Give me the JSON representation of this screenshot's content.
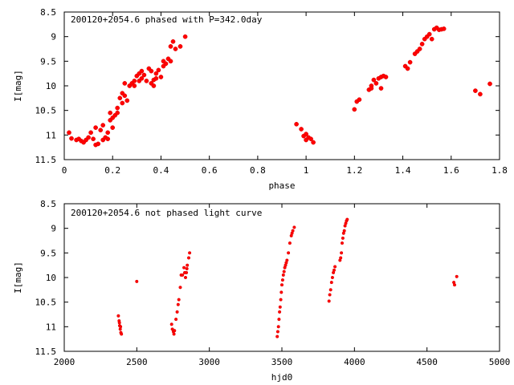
{
  "chart_data": [
    {
      "type": "scatter",
      "title": "200120+2054.6 phased with P=342.0day",
      "xlabel": "phase",
      "ylabel": "I[mag]",
      "xlim": [
        0,
        1.8
      ],
      "ylim": [
        11.5,
        8.5
      ],
      "y_inverted": true,
      "xticks": [
        "0",
        "0.2",
        "0.4",
        "0.6",
        "0.8",
        "1",
        "1.2",
        "1.4",
        "1.6",
        "1.8"
      ],
      "yticks": [
        "8.5",
        "9",
        "9.5",
        "10",
        "10.5",
        "11",
        "11.5"
      ],
      "marker_color": "#ff0000",
      "points": [
        [
          0.02,
          10.95
        ],
        [
          0.03,
          11.07
        ],
        [
          0.05,
          11.1
        ],
        [
          0.06,
          11.08
        ],
        [
          0.07,
          11.12
        ],
        [
          0.08,
          11.15
        ],
        [
          0.09,
          11.1
        ],
        [
          0.1,
          11.05
        ],
        [
          0.11,
          10.95
        ],
        [
          0.12,
          11.08
        ],
        [
          0.13,
          10.85
        ],
        [
          0.13,
          11.2
        ],
        [
          0.14,
          11.18
        ],
        [
          0.15,
          10.9
        ],
        [
          0.16,
          11.1
        ],
        [
          0.16,
          10.8
        ],
        [
          0.17,
          11.05
        ],
        [
          0.18,
          10.95
        ],
        [
          0.18,
          11.08
        ],
        [
          0.19,
          10.7
        ],
        [
          0.19,
          10.55
        ],
        [
          0.2,
          10.65
        ],
        [
          0.2,
          10.85
        ],
        [
          0.21,
          10.6
        ],
        [
          0.22,
          10.55
        ],
        [
          0.22,
          10.45
        ],
        [
          0.23,
          10.25
        ],
        [
          0.24,
          10.15
        ],
        [
          0.24,
          10.35
        ],
        [
          0.25,
          10.2
        ],
        [
          0.26,
          10.3
        ],
        [
          0.25,
          9.95
        ],
        [
          0.27,
          10.0
        ],
        [
          0.28,
          9.95
        ],
        [
          0.29,
          9.9
        ],
        [
          0.29,
          10.0
        ],
        [
          0.3,
          9.8
        ],
        [
          0.31,
          9.9
        ],
        [
          0.31,
          9.75
        ],
        [
          0.32,
          9.85
        ],
        [
          0.32,
          9.7
        ],
        [
          0.33,
          9.78
        ],
        [
          0.34,
          9.9
        ],
        [
          0.35,
          9.65
        ],
        [
          0.36,
          9.7
        ],
        [
          0.36,
          9.95
        ],
        [
          0.37,
          9.88
        ],
        [
          0.37,
          10.0
        ],
        [
          0.38,
          9.85
        ],
        [
          0.38,
          9.75
        ],
        [
          0.39,
          9.68
        ],
        [
          0.4,
          9.82
        ],
        [
          0.41,
          9.6
        ],
        [
          0.41,
          9.5
        ],
        [
          0.42,
          9.55
        ],
        [
          0.43,
          9.45
        ],
        [
          0.44,
          9.5
        ],
        [
          0.44,
          9.2
        ],
        [
          0.45,
          9.1
        ],
        [
          0.46,
          9.25
        ],
        [
          0.48,
          9.2
        ],
        [
          0.5,
          9.0
        ],
        [
          0.96,
          10.78
        ],
        [
          0.98,
          10.88
        ],
        [
          0.99,
          11.02
        ],
        [
          1.0,
          10.98
        ],
        [
          1.01,
          11.05
        ],
        [
          1.02,
          11.08
        ],
        [
          1.03,
          11.15
        ],
        [
          1.0,
          11.1
        ],
        [
          1.2,
          10.48
        ],
        [
          1.21,
          10.32
        ],
        [
          1.22,
          10.28
        ],
        [
          1.26,
          10.08
        ],
        [
          1.27,
          10.0
        ],
        [
          1.27,
          10.05
        ],
        [
          1.28,
          9.88
        ],
        [
          1.29,
          9.95
        ],
        [
          1.3,
          9.85
        ],
        [
          1.31,
          9.82
        ],
        [
          1.31,
          10.05
        ],
        [
          1.32,
          9.8
        ],
        [
          1.33,
          9.82
        ],
        [
          1.41,
          9.6
        ],
        [
          1.42,
          9.65
        ],
        [
          1.43,
          9.52
        ],
        [
          1.45,
          9.35
        ],
        [
          1.46,
          9.3
        ],
        [
          1.47,
          9.25
        ],
        [
          1.48,
          9.15
        ],
        [
          1.49,
          9.05
        ],
        [
          1.5,
          9.0
        ],
        [
          1.51,
          8.95
        ],
        [
          1.52,
          9.05
        ],
        [
          1.53,
          8.85
        ],
        [
          1.54,
          8.82
        ],
        [
          1.55,
          8.86
        ],
        [
          1.56,
          8.85
        ],
        [
          1.57,
          8.84
        ],
        [
          1.7,
          10.1
        ],
        [
          1.72,
          10.17
        ],
        [
          1.76,
          9.96
        ]
      ]
    },
    {
      "type": "scatter",
      "title": "200120+2054.6 not phased light curve",
      "xlabel": "hjd0",
      "ylabel": "I[mag]",
      "xlim": [
        2000,
        5000
      ],
      "ylim": [
        11.5,
        8.5
      ],
      "y_inverted": true,
      "xticks": [
        "2000",
        "2500",
        "3000",
        "3500",
        "4000",
        "4500",
        "5000"
      ],
      "yticks": [
        "8.5",
        "9",
        "9.5",
        "10",
        "10.5",
        "11",
        "11.5"
      ],
      "marker_color": "#ff0000",
      "points": [
        [
          2373,
          10.78
        ],
        [
          2378,
          10.88
        ],
        [
          2382,
          10.98
        ],
        [
          2386,
          11.05
        ],
        [
          2390,
          11.12
        ],
        [
          2394,
          11.15
        ],
        [
          2388,
          11.0
        ],
        [
          2380,
          10.92
        ],
        [
          2500,
          10.08
        ],
        [
          2740,
          10.95
        ],
        [
          2745,
          11.05
        ],
        [
          2752,
          11.1
        ],
        [
          2756,
          11.15
        ],
        [
          2760,
          11.08
        ],
        [
          2770,
          10.85
        ],
        [
          2778,
          10.7
        ],
        [
          2785,
          10.55
        ],
        [
          2790,
          10.45
        ],
        [
          2800,
          10.2
        ],
        [
          2806,
          9.95
        ],
        [
          2815,
          9.95
        ],
        [
          2825,
          9.8
        ],
        [
          2830,
          9.9
        ],
        [
          2836,
          10.0
        ],
        [
          2842,
          9.9
        ],
        [
          2848,
          9.75
        ],
        [
          2858,
          9.6
        ],
        [
          2864,
          9.5
        ],
        [
          2845,
          9.82
        ],
        [
          3468,
          11.2
        ],
        [
          3472,
          11.1
        ],
        [
          3476,
          11.0
        ],
        [
          3480,
          10.85
        ],
        [
          3484,
          10.7
        ],
        [
          3488,
          10.6
        ],
        [
          3492,
          10.45
        ],
        [
          3496,
          10.3
        ],
        [
          3500,
          10.15
        ],
        [
          3505,
          10.05
        ],
        [
          3510,
          9.95
        ],
        [
          3515,
          9.88
        ],
        [
          3520,
          9.8
        ],
        [
          3525,
          9.75
        ],
        [
          3530,
          9.7
        ],
        [
          3535,
          9.65
        ],
        [
          3545,
          9.5
        ],
        [
          3555,
          9.3
        ],
        [
          3565,
          9.15
        ],
        [
          3570,
          9.1
        ],
        [
          3575,
          9.05
        ],
        [
          3585,
          8.98
        ],
        [
          3825,
          10.48
        ],
        [
          3830,
          10.35
        ],
        [
          3836,
          10.25
        ],
        [
          3842,
          10.1
        ],
        [
          3848,
          10.0
        ],
        [
          3855,
          9.9
        ],
        [
          3860,
          9.85
        ],
        [
          3866,
          9.78
        ],
        [
          3900,
          9.65
        ],
        [
          3905,
          9.6
        ],
        [
          3910,
          9.5
        ],
        [
          3915,
          9.3
        ],
        [
          3920,
          9.2
        ],
        [
          3925,
          9.1
        ],
        [
          3930,
          9.05
        ],
        [
          3935,
          8.95
        ],
        [
          3940,
          8.9
        ],
        [
          3945,
          8.85
        ],
        [
          3950,
          8.82
        ],
        [
          4685,
          10.1
        ],
        [
          4690,
          10.15
        ],
        [
          4705,
          9.98
        ]
      ]
    }
  ]
}
